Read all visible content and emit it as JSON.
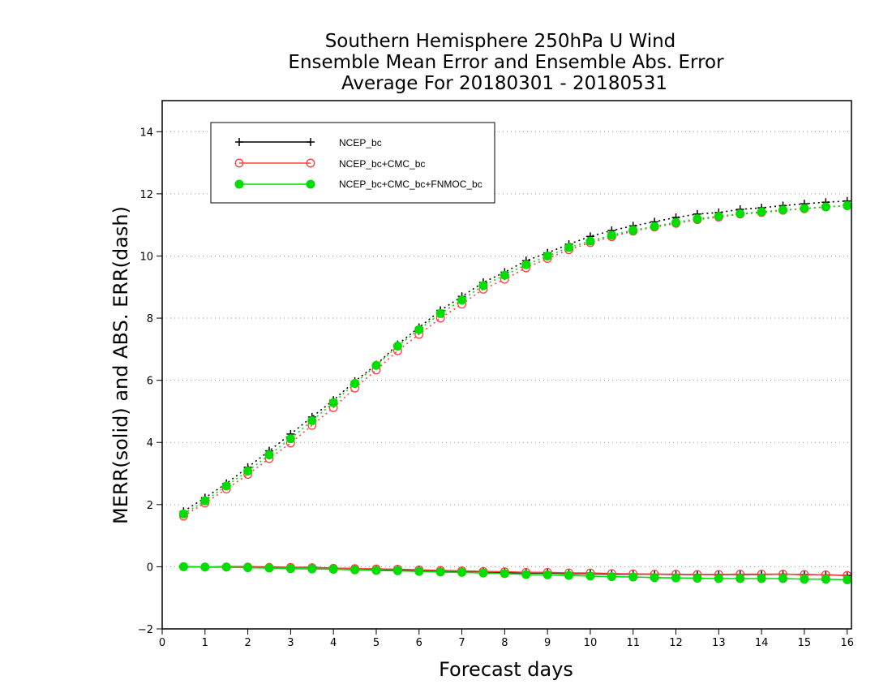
{
  "colors": {
    "background": "#ffffff",
    "frame": "#000000",
    "grid": "#999999",
    "NCEP_bc": "#000000",
    "NCEP_bc+CMC_bc": "#ff4040",
    "NCEP_bc+CMC_bc+FNMOC_bc": "#00dd00"
  },
  "chart_data": {
    "type": "line",
    "title": [
      "Southern Hemisphere 250hPa U Wind",
      "Ensemble Mean Error and Ensemble Abs. Error",
      "Average For 20180301 - 20180531"
    ],
    "xlabel": "Forecast days",
    "ylabel": "MERR(solid) and ABS. ERR(dash)",
    "xlim": [
      0,
      16.1
    ],
    "ylim": [
      -2,
      15
    ],
    "x_ticks": [
      0,
      1,
      2,
      3,
      4,
      5,
      6,
      7,
      8,
      9,
      10,
      11,
      12,
      13,
      14,
      15,
      16
    ],
    "y_ticks": [
      -2,
      0,
      2,
      4,
      6,
      8,
      10,
      12,
      14
    ],
    "grid": "horizontal dotted",
    "legend_position": "top-left",
    "x": [
      0.5,
      1,
      1.5,
      2,
      2.5,
      3,
      3.5,
      4,
      4.5,
      5,
      5.5,
      6,
      6.5,
      7,
      7.5,
      8,
      8.5,
      9,
      9.5,
      10,
      10.5,
      11,
      11.5,
      12,
      12.5,
      13,
      13.5,
      14,
      14.5,
      15,
      15.5,
      16
    ],
    "series": [
      {
        "name": "NCEP_bc",
        "marker": "plus",
        "color_key": "NCEP_bc",
        "abs_err": [
          1.78,
          2.22,
          2.68,
          3.2,
          3.73,
          4.27,
          4.82,
          5.36,
          5.97,
          6.5,
          7.15,
          7.7,
          8.25,
          8.7,
          9.15,
          9.48,
          9.85,
          10.1,
          10.38,
          10.63,
          10.82,
          10.97,
          11.1,
          11.24,
          11.35,
          11.4,
          11.5,
          11.55,
          11.62,
          11.68,
          11.73,
          11.77
        ],
        "mean_err": [
          0.0,
          -0.01,
          0.0,
          0.0,
          -0.01,
          -0.02,
          -0.02,
          -0.05,
          -0.06,
          -0.08,
          -0.1,
          -0.12,
          -0.13,
          -0.15,
          -0.17,
          -0.18,
          -0.2,
          -0.2,
          -0.22,
          -0.22,
          -0.24,
          -0.24,
          -0.24,
          -0.25,
          -0.25,
          -0.25,
          -0.25,
          -0.25,
          -0.24,
          -0.25,
          -0.26,
          -0.28
        ]
      },
      {
        "name": "NCEP_bc+CMC_bc",
        "marker": "open-circle",
        "color_key": "NCEP_bc+CMC_bc",
        "abs_err": [
          1.63,
          2.05,
          2.5,
          2.97,
          3.48,
          3.98,
          4.55,
          5.12,
          5.75,
          6.33,
          6.95,
          7.48,
          8.0,
          8.45,
          8.93,
          9.25,
          9.62,
          9.92,
          10.2,
          10.43,
          10.62,
          10.8,
          10.93,
          11.05,
          11.17,
          11.25,
          11.35,
          11.4,
          11.47,
          11.52,
          11.58,
          11.62
        ],
        "mean_err": [
          0.0,
          -0.01,
          -0.01,
          -0.01,
          -0.02,
          -0.02,
          -0.03,
          -0.05,
          -0.06,
          -0.07,
          -0.08,
          -0.1,
          -0.12,
          -0.13,
          -0.15,
          -0.16,
          -0.18,
          -0.18,
          -0.2,
          -0.2,
          -0.22,
          -0.23,
          -0.24,
          -0.24,
          -0.25,
          -0.25,
          -0.24,
          -0.24,
          -0.24,
          -0.25,
          -0.26,
          -0.28
        ]
      },
      {
        "name": "NCEP_bc+CMC_bc+FNMOC_bc",
        "marker": "filled-circle",
        "color_key": "NCEP_bc+CMC_bc+FNMOC_bc",
        "abs_err": [
          1.7,
          2.12,
          2.6,
          3.08,
          3.6,
          4.12,
          4.7,
          5.28,
          5.9,
          6.48,
          7.1,
          7.63,
          8.15,
          8.58,
          9.05,
          9.38,
          9.72,
          10.0,
          10.27,
          10.48,
          10.67,
          10.83,
          10.95,
          11.08,
          11.2,
          11.28,
          11.36,
          11.42,
          11.48,
          11.53,
          11.58,
          11.62
        ],
        "mean_err": [
          0.0,
          -0.01,
          -0.01,
          -0.03,
          -0.04,
          -0.06,
          -0.07,
          -0.08,
          -0.1,
          -0.12,
          -0.13,
          -0.15,
          -0.17,
          -0.18,
          -0.2,
          -0.22,
          -0.25,
          -0.26,
          -0.28,
          -0.3,
          -0.32,
          -0.33,
          -0.35,
          -0.36,
          -0.37,
          -0.38,
          -0.38,
          -0.38,
          -0.38,
          -0.4,
          -0.4,
          -0.42
        ]
      }
    ]
  }
}
